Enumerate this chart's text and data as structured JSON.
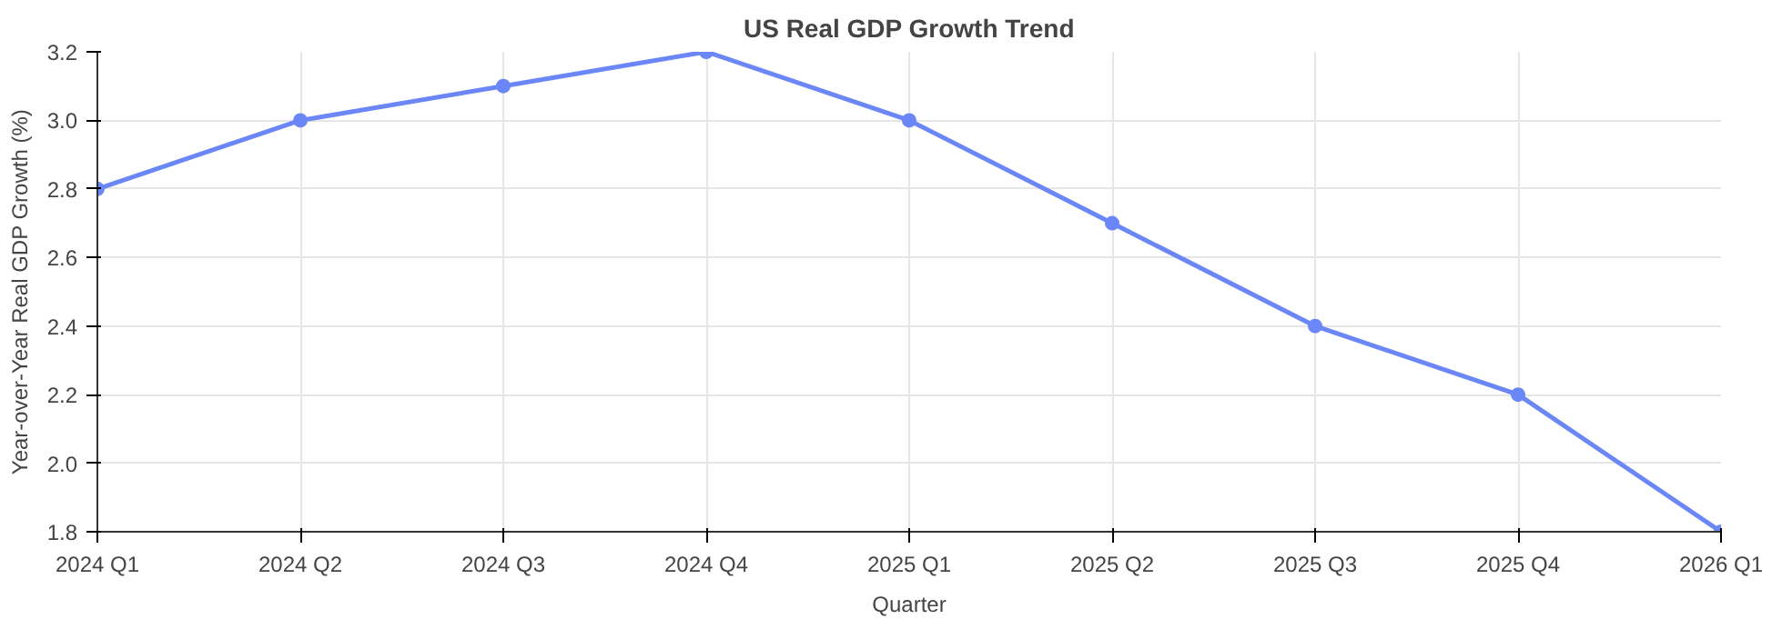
{
  "chart_data": {
    "type": "line",
    "title": "US Real GDP Growth Trend",
    "xlabel": "Quarter",
    "ylabel": "Year-over-Year Real GDP Growth (%)",
    "categories": [
      "2024 Q1",
      "2024 Q2",
      "2024 Q3",
      "2024 Q4",
      "2025 Q1",
      "2025 Q2",
      "2025 Q3",
      "2025 Q4",
      "2026 Q1"
    ],
    "series": [
      {
        "color": "#6b87f7",
        "values": [
          2.8,
          3.0,
          3.1,
          3.2,
          3.0,
          2.7,
          2.4,
          2.2,
          1.8
        ]
      }
    ],
    "ylim": [
      1.8,
      3.2
    ],
    "yticks": [
      {
        "value": 1.8,
        "label": "1.8"
      },
      {
        "value": 2.0,
        "label": "2.0"
      },
      {
        "value": 2.2,
        "label": "2.2"
      },
      {
        "value": 2.4,
        "label": "2.4"
      },
      {
        "value": 2.6,
        "label": "2.6"
      },
      {
        "value": 2.8,
        "label": "2.8"
      },
      {
        "value": 3.0,
        "label": "3.0"
      },
      {
        "value": 3.2,
        "label": "3.2"
      }
    ],
    "grid": true,
    "marker": "circle",
    "line_style": "solid"
  }
}
